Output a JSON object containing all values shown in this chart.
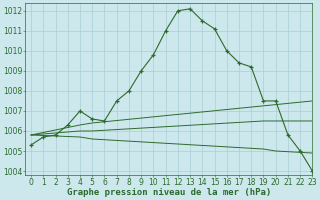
{
  "lines": [
    {
      "x": [
        0,
        1,
        2,
        3,
        4,
        5,
        6,
        7,
        8,
        9,
        10,
        11,
        12,
        13,
        14,
        15,
        16,
        17,
        18,
        19,
        20,
        21,
        22,
        23
      ],
      "y": [
        1005.3,
        1005.7,
        1005.8,
        1006.3,
        1007.0,
        1006.6,
        1006.5,
        1007.5,
        1008.0,
        1009.0,
        1009.8,
        1011.0,
        1012.0,
        1012.1,
        1011.5,
        1011.1,
        1010.0,
        1009.4,
        1009.2,
        1007.5,
        1007.5,
        1005.8,
        1005.0,
        1004.0
      ],
      "with_markers": true
    },
    {
      "x": [
        0,
        4,
        5,
        23
      ],
      "y": [
        1005.8,
        1006.3,
        1006.4,
        1007.5
      ],
      "with_markers": false
    },
    {
      "x": [
        0,
        4,
        5,
        19,
        20,
        23
      ],
      "y": [
        1005.8,
        1006.0,
        1006.0,
        1006.5,
        1006.5,
        1006.5
      ],
      "with_markers": false
    },
    {
      "x": [
        0,
        4,
        5,
        19,
        20,
        23
      ],
      "y": [
        1005.8,
        1005.7,
        1005.6,
        1005.1,
        1005.0,
        1004.9
      ],
      "with_markers": false
    }
  ],
  "xlim": [
    -0.5,
    23
  ],
  "ylim": [
    1003.8,
    1012.4
  ],
  "yticks": [
    1004,
    1005,
    1006,
    1007,
    1008,
    1009,
    1010,
    1011,
    1012
  ],
  "xticks": [
    0,
    1,
    2,
    3,
    4,
    5,
    6,
    7,
    8,
    9,
    10,
    11,
    12,
    13,
    14,
    15,
    16,
    17,
    18,
    19,
    20,
    21,
    22,
    23
  ],
  "xlabel": "Graphe pression niveau de la mer (hPa)",
  "background_color": "#cce8ec",
  "grid_color": "#aacdd4",
  "line_color": "#2d6a2d",
  "text_color": "#2d6a2d",
  "tick_label_fontsize": 5.5,
  "xlabel_fontsize": 6.5
}
